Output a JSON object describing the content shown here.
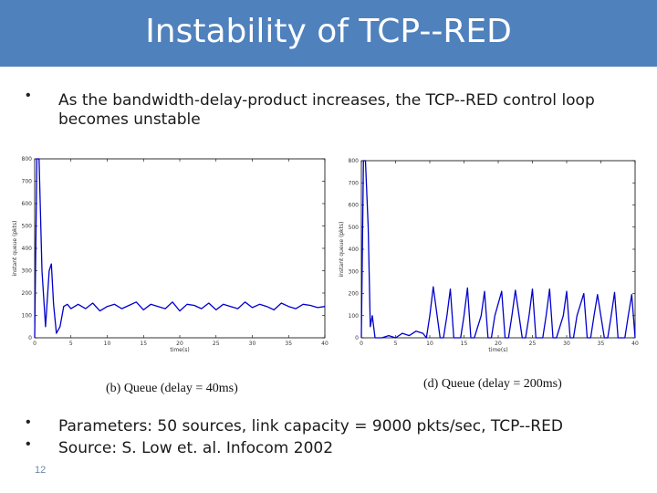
{
  "slide": {
    "title": "Instability of TCP--RED",
    "bullet1": "As the bandwidth-delay-product increases, the TCP--RED control loop becomes unstable",
    "bullet2": "Parameters: 50 sources, link capacity = 9000 pkts/sec, TCP--RED",
    "bullet3": "Source: S. Low et. al.  Infocom 2002",
    "slide_number": "12",
    "bullet_glyph": "•",
    "title_bar_color": "#4f81bd"
  },
  "chart_data": [
    {
      "type": "line",
      "caption": "(b) Queue (delay = 40ms)",
      "xlabel": "time(s)",
      "ylabel": "instant queue (pkts)",
      "xlim": [
        0,
        40
      ],
      "ylim": [
        0,
        800
      ],
      "xticks": [
        "0",
        "5",
        "10",
        "15",
        "20",
        "25",
        "30",
        "35",
        "40"
      ],
      "yticks": [
        "0",
        "100",
        "200",
        "300",
        "400",
        "500",
        "600",
        "700",
        "800"
      ],
      "line_color": "#0000cc",
      "x": [
        0,
        0.3,
        0.6,
        1.0,
        1.5,
        2.0,
        2.3,
        2.6,
        3.0,
        3.5,
        4.0,
        4.5,
        5,
        6,
        7,
        8,
        9,
        10,
        11,
        12,
        13,
        14,
        15,
        16,
        17,
        18,
        19,
        20,
        21,
        22,
        23,
        24,
        25,
        26,
        27,
        28,
        29,
        30,
        31,
        32,
        33,
        34,
        35,
        36,
        37,
        38,
        39,
        40
      ],
      "values": [
        0,
        800,
        800,
        300,
        50,
        300,
        330,
        150,
        20,
        50,
        140,
        150,
        130,
        150,
        130,
        155,
        120,
        140,
        150,
        130,
        145,
        160,
        125,
        150,
        140,
        130,
        160,
        120,
        150,
        145,
        130,
        155,
        125,
        150,
        140,
        130,
        160,
        135,
        150,
        140,
        125,
        155,
        140,
        130,
        150,
        145,
        135,
        140
      ]
    },
    {
      "type": "line",
      "caption": "(d) Queue (delay = 200ms)",
      "xlabel": "time(s)",
      "ylabel": "instant queue (pkts)",
      "xlim": [
        0,
        40
      ],
      "ylim": [
        0,
        800
      ],
      "xticks": [
        "0",
        "5",
        "10",
        "15",
        "20",
        "25",
        "30",
        "35",
        "40"
      ],
      "yticks": [
        "0",
        "100",
        "200",
        "300",
        "400",
        "500",
        "600",
        "700",
        "800"
      ],
      "line_color": "#0000cc",
      "x": [
        0,
        0.3,
        0.6,
        1.0,
        1.3,
        1.6,
        2,
        3,
        4,
        5,
        6,
        7,
        8,
        9,
        9.5,
        10,
        10.5,
        11.5,
        12,
        12.5,
        13,
        13.5,
        14.5,
        15,
        15.5,
        16,
        16.5,
        17.5,
        18,
        18.5,
        19,
        19.5,
        20.5,
        21,
        21.5,
        22,
        22.5,
        23.5,
        24,
        24.5,
        25,
        25.5,
        26.5,
        27,
        27.5,
        28,
        28.5,
        29.5,
        30,
        30.5,
        31,
        31.5,
        32.5,
        33,
        33.5,
        34,
        34.5,
        35.5,
        36,
        36.5,
        37,
        37.5,
        38.5,
        39,
        39.5,
        40
      ],
      "values": [
        0,
        800,
        800,
        500,
        50,
        100,
        0,
        0,
        10,
        0,
        20,
        10,
        30,
        20,
        0,
        100,
        230,
        0,
        0,
        100,
        220,
        0,
        0,
        100,
        225,
        0,
        0,
        100,
        210,
        0,
        0,
        100,
        210,
        0,
        0,
        100,
        215,
        0,
        0,
        100,
        220,
        0,
        0,
        100,
        220,
        0,
        0,
        100,
        210,
        0,
        0,
        100,
        200,
        0,
        0,
        100,
        195,
        0,
        0,
        100,
        205,
        0,
        0,
        100,
        195,
        0
      ]
    }
  ]
}
